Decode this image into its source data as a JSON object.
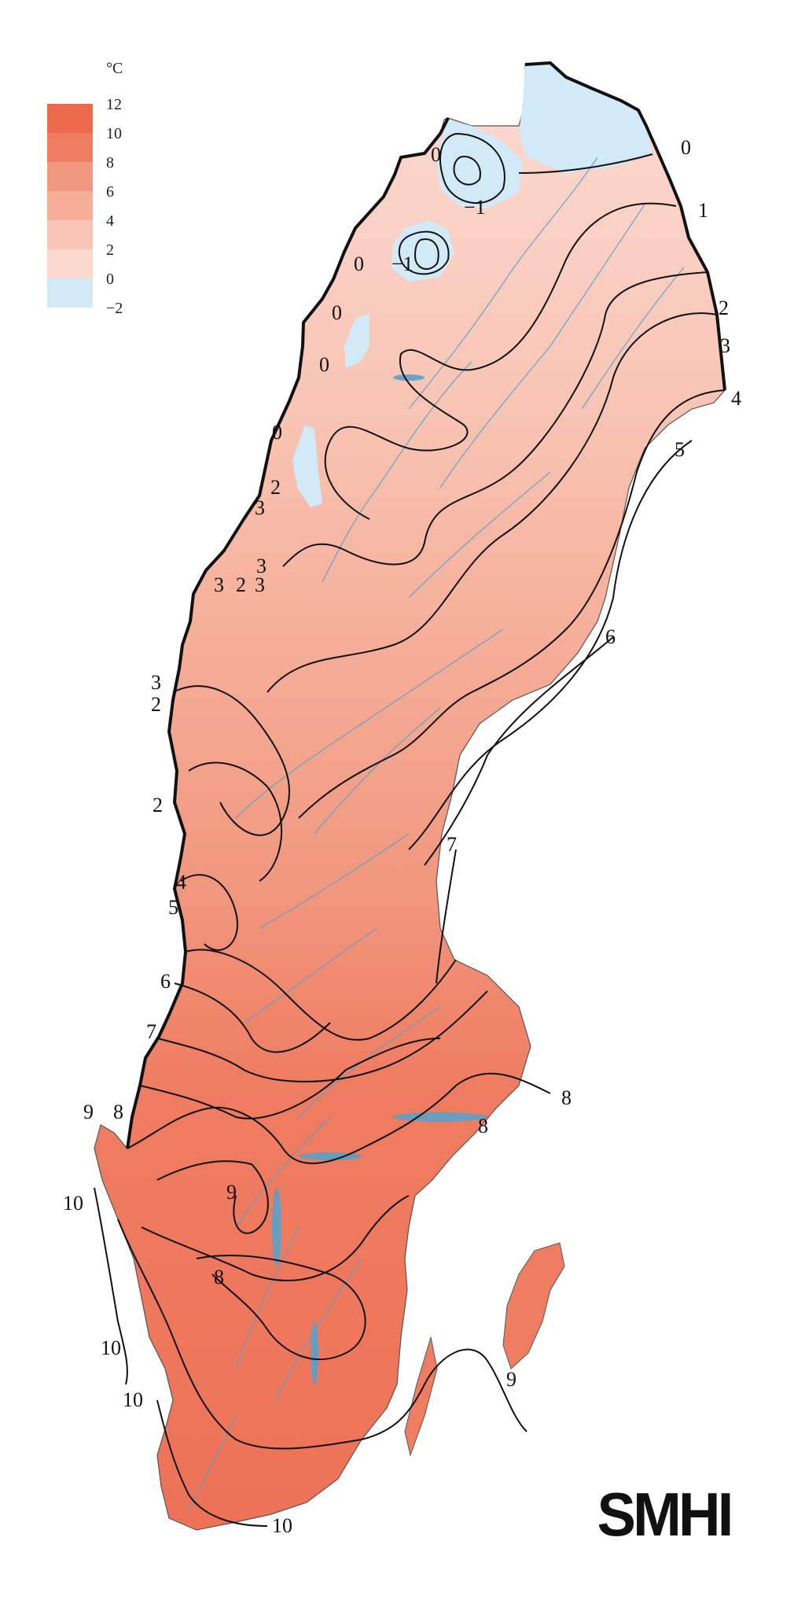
{
  "legend": {
    "unit": "°C",
    "bins": [
      {
        "label": "12",
        "color": "#eb6a4c"
      },
      {
        "label": "10",
        "color": "#ef7d62"
      },
      {
        "label": "8",
        "color": "#f1977e"
      },
      {
        "label": "6",
        "color": "#f5ae98"
      },
      {
        "label": "4",
        "color": "#f8c4b4"
      },
      {
        "label": "2",
        "color": "#fbd9cf"
      },
      {
        "label": "0",
        "color": "#d2eaf8"
      }
    ],
    "bottom_label": "−2"
  },
  "isotherms": [
    {
      "label": "0"
    },
    {
      "label": "−1"
    },
    {
      "label": "−1"
    },
    {
      "label": "0"
    },
    {
      "label": "1"
    },
    {
      "label": "0"
    },
    {
      "label": "0"
    },
    {
      "label": "2"
    },
    {
      "label": "3"
    },
    {
      "label": "0"
    },
    {
      "label": "4"
    },
    {
      "label": "5"
    },
    {
      "label": "0"
    },
    {
      "label": "2"
    },
    {
      "label": "3"
    },
    {
      "label": "3"
    },
    {
      "label": "3"
    },
    {
      "label": "2"
    },
    {
      "label": "3"
    },
    {
      "label": "6"
    },
    {
      "label": "3"
    },
    {
      "label": "2"
    },
    {
      "label": "2"
    },
    {
      "label": "7"
    },
    {
      "label": "4"
    },
    {
      "label": "5"
    },
    {
      "label": "6"
    },
    {
      "label": "7"
    },
    {
      "label": "8"
    },
    {
      "label": "9"
    },
    {
      "label": "8"
    },
    {
      "label": "8"
    },
    {
      "label": "9"
    },
    {
      "label": "10"
    },
    {
      "label": "8"
    },
    {
      "label": "10"
    },
    {
      "label": "9"
    },
    {
      "label": "10"
    },
    {
      "label": "10"
    }
  ],
  "logo": {
    "text": "SMHI"
  },
  "colors": {
    "land_north": "#fbd9cf",
    "land_south": "#ef7d62",
    "cold": "#d2eaf8",
    "water": "#5aa0c8",
    "border": "#111111"
  }
}
